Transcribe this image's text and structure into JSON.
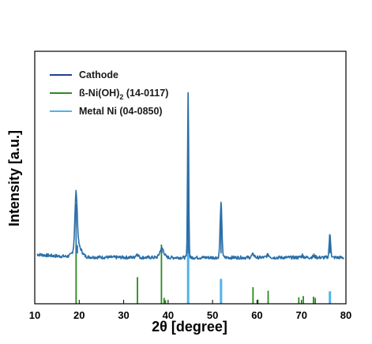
{
  "chart_data": {
    "type": "line",
    "xlabel": "2θ [degree]",
    "ylabel": "Intensity [a.u.]",
    "xlim": [
      10,
      80
    ],
    "x_ticks": [
      10,
      20,
      30,
      40,
      50,
      60,
      70,
      80
    ],
    "y_ticks_shown": false,
    "grid": false,
    "legend_position": "top-left",
    "legend": [
      {
        "key": "cathode",
        "text": "Cathode",
        "sub": "",
        "suffix": "",
        "color": "#1f3f8f"
      },
      {
        "key": "ref1",
        "text": "ß-Ni(OH)",
        "sub": "2",
        "suffix": " (14-0117)",
        "color": "#2a8a1f"
      },
      {
        "key": "ref2",
        "text": "Metal Ni (04-0850)",
        "sub": "",
        "suffix": "",
        "color": "#4fb3e8"
      }
    ],
    "series": [
      {
        "name": "Cathode",
        "type": "xrd-pattern",
        "color": "#2a6fa8",
        "baseline": 9,
        "peaks": [
          {
            "x": 19.3,
            "height": 26,
            "width": 0.25
          },
          {
            "x": 19.6,
            "height": 6,
            "width": 0.8
          },
          {
            "x": 33.0,
            "height": 1.5,
            "width": 0.3
          },
          {
            "x": 38.6,
            "height": 4.5,
            "width": 0.45
          },
          {
            "x": 44.5,
            "height": 80,
            "width": 0.13
          },
          {
            "x": 51.9,
            "height": 26,
            "width": 0.2
          },
          {
            "x": 59.1,
            "height": 1.5,
            "width": 0.3
          },
          {
            "x": 62.5,
            "height": 1.2,
            "width": 0.35
          },
          {
            "x": 70.2,
            "height": 0.6,
            "width": 0.4
          },
          {
            "x": 72.8,
            "height": 0.5,
            "width": 0.4
          },
          {
            "x": 76.4,
            "height": 11,
            "width": 0.18
          }
        ]
      },
      {
        "name": "ß-Ni(OH)2 (14-0117)",
        "type": "reference-sticks",
        "color": "#2a8a1f",
        "sticks": [
          {
            "x": 19.3,
            "y": 100
          },
          {
            "x": 33.1,
            "y": 45
          },
          {
            "x": 38.5,
            "y": 100
          },
          {
            "x": 39.1,
            "y": 10
          },
          {
            "x": 39.4,
            "y": 6
          },
          {
            "x": 51.9,
            "y": 17
          },
          {
            "x": 59.1,
            "y": 28
          },
          {
            "x": 60.2,
            "y": 7
          },
          {
            "x": 62.5,
            "y": 22
          },
          {
            "x": 69.4,
            "y": 11
          },
          {
            "x": 70.4,
            "y": 13
          },
          {
            "x": 72.7,
            "y": 12
          },
          {
            "x": 73.1,
            "y": 10
          }
        ]
      },
      {
        "name": "Metal Ni (04-0850)",
        "type": "reference-sticks",
        "color": "#4fb3e8",
        "sticks": [
          {
            "x": 44.5,
            "y": 100
          },
          {
            "x": 51.9,
            "y": 42
          },
          {
            "x": 76.4,
            "y": 21
          }
        ]
      }
    ]
  }
}
